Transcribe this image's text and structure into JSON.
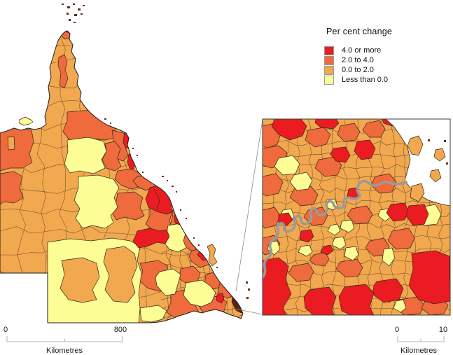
{
  "legend": {
    "title": "Per cent change",
    "items": [
      {
        "id": "red",
        "label": "4.0 or more",
        "color": "#ea1c21"
      },
      {
        "id": "orange",
        "label": "2.0 to 4.0",
        "color": "#ef6a3c"
      },
      {
        "id": "lo",
        "label": "0.0 to 2.0",
        "color": "#f2a84e"
      },
      {
        "id": "yellow",
        "label": "Less than 0.0",
        "color": "#fdfd96"
      }
    ]
  },
  "scalebars": {
    "main": {
      "zero": "0",
      "max": "800",
      "unit": "Kilometres"
    },
    "inset": {
      "zero": "0",
      "max": "10",
      "unit": "Kilometres"
    }
  },
  "map_colors": {
    "sea": "#ffffff",
    "region_border": "#33281c",
    "state_outline": "#1c1c1c",
    "dense_urban": "#5f2310",
    "river_casing": "#9a9a9a",
    "river_fill": "#ffffff"
  }
}
